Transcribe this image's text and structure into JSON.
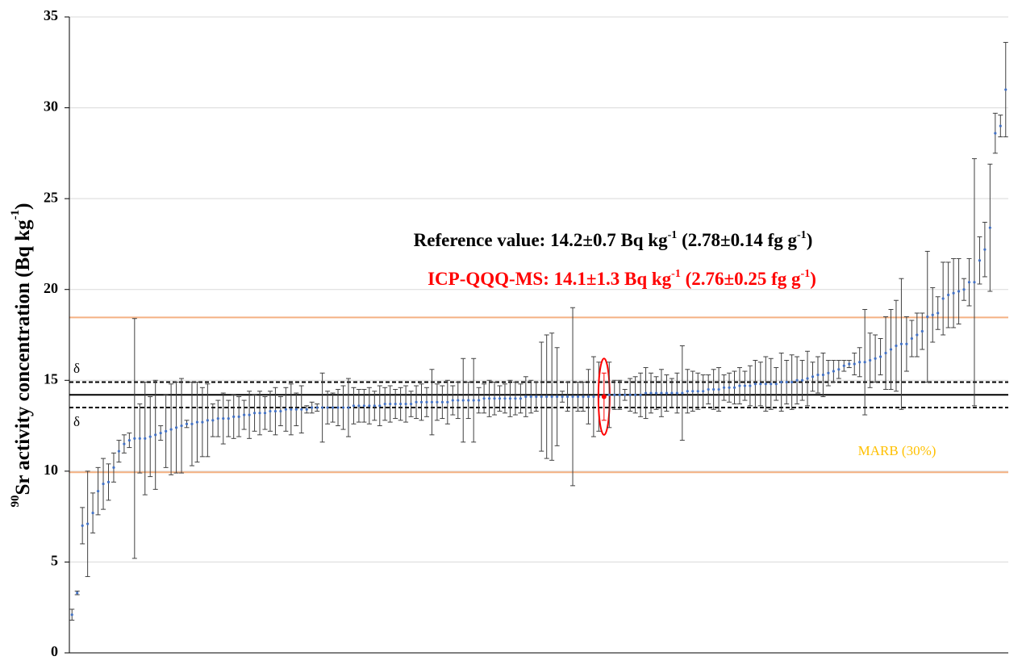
{
  "chart_data": {
    "type": "scatter",
    "y_label": [
      "90",
      "Sr activity concentration (Bq kg",
      "-1",
      ")"
    ],
    "ylim": [
      0,
      35
    ],
    "yticks": [
      0,
      5,
      10,
      15,
      20,
      25,
      30,
      35
    ],
    "grid": true,
    "color": "#4472c4",
    "error_color": "#404040",
    "values": [
      2.1,
      3.3,
      7.0,
      7.1,
      7.7,
      8.9,
      9.3,
      9.4,
      10.2,
      11.1,
      11.5,
      11.7,
      11.8,
      11.8,
      11.8,
      11.9,
      12.0,
      12.1,
      12.2,
      12.3,
      12.4,
      12.5,
      12.6,
      12.6,
      12.7,
      12.7,
      12.8,
      12.8,
      12.9,
      12.9,
      12.9,
      13.0,
      13.0,
      13.1,
      13.1,
      13.2,
      13.2,
      13.2,
      13.3,
      13.3,
      13.3,
      13.4,
      13.4,
      13.4,
      13.4,
      13.4,
      13.5,
      13.5,
      13.5,
      13.5,
      13.5,
      13.5,
      13.5,
      13.5,
      13.6,
      13.6,
      13.6,
      13.6,
      13.6,
      13.6,
      13.7,
      13.7,
      13.7,
      13.7,
      13.7,
      13.7,
      13.8,
      13.8,
      13.8,
      13.8,
      13.8,
      13.8,
      13.8,
      13.9,
      13.9,
      13.9,
      13.9,
      13.9,
      13.9,
      14.0,
      14.0,
      14.0,
      14.0,
      14.0,
      14.0,
      14.0,
      14.0,
      14.1,
      14.1,
      14.1,
      14.1,
      14.1,
      14.1,
      14.1,
      14.1,
      14.1,
      14.1,
      14.1,
      14.1,
      14.1,
      14.1,
      14.1,
      14.1,
      14.2,
      14.2,
      14.2,
      14.2,
      14.2,
      14.2,
      14.2,
      14.3,
      14.3,
      14.3,
      14.3,
      14.3,
      14.3,
      14.3,
      14.3,
      14.4,
      14.4,
      14.4,
      14.4,
      14.5,
      14.5,
      14.5,
      14.6,
      14.6,
      14.6,
      14.7,
      14.7,
      14.7,
      14.8,
      14.8,
      14.8,
      14.8,
      14.8,
      14.9,
      14.9,
      14.9,
      15.0,
      15.0,
      15.1,
      15.2,
      15.3,
      15.3,
      15.4,
      15.5,
      15.6,
      15.8,
      15.9,
      15.9,
      16.0,
      16.0,
      16.1,
      16.2,
      16.3,
      16.5,
      16.7,
      16.9,
      17.0,
      17.0,
      17.3,
      17.5,
      17.7,
      18.5,
      18.6,
      18.7,
      19.5,
      19.7,
      19.8,
      19.9,
      20.0,
      20.4,
      20.4,
      21.6,
      22.2,
      23.4,
      28.6,
      29.0,
      31.0
    ],
    "errors": [
      0.3,
      0.1,
      1.0,
      2.9,
      1.1,
      1.3,
      1.4,
      1.0,
      0.8,
      0.6,
      0.5,
      0.4,
      6.6,
      1.9,
      3.1,
      2.2,
      3.0,
      0.4,
      2.0,
      2.5,
      2.5,
      2.6,
      0.2,
      2.3,
      2.2,
      1.9,
      2.0,
      0.9,
      1.0,
      1.4,
      1.0,
      1.2,
      1.1,
      0.8,
      1.3,
      1.0,
      1.2,
      0.9,
      1.1,
      1.3,
      0.8,
      1.2,
      1.4,
      0.9,
      1.3,
      0.2,
      0.3,
      0.2,
      1.9,
      0.9,
      0.8,
      1.0,
      1.2,
      1.6,
      1.0,
      0.9,
      0.9,
      1.0,
      0.8,
      1.1,
      0.9,
      1.0,
      0.8,
      0.9,
      1.0,
      0.7,
      0.9,
      1.0,
      0.8,
      1.8,
      1.0,
      0.9,
      1.2,
      0.8,
      1.0,
      2.3,
      1.0,
      2.3,
      0.7,
      0.8,
      1.0,
      0.9,
      0.7,
      0.8,
      1.0,
      0.9,
      0.8,
      1.1,
      0.9,
      0.8,
      3.0,
      3.4,
      3.5,
      2.7,
      0.3,
      0.8,
      4.9,
      0.8,
      0.8,
      1.5,
      2.2,
      1.9,
      1.3,
      1.8,
      0.8,
      0.8,
      0.3,
      0.9,
      1.0,
      1.2,
      1.4,
      1.1,
      0.9,
      1.3,
      1.0,
      0.8,
      1.1,
      2.6,
      1.2,
      1.1,
      1.0,
      0.9,
      0.8,
      1.1,
      1.2,
      0.7,
      0.8,
      0.9,
      1.0,
      0.8,
      1.1,
      1.3,
      1.2,
      1.5,
      1.4,
      0.9,
      1.6,
      1.2,
      1.5,
      1.3,
      1.1,
      1.5,
      0.8,
      1.0,
      1.2,
      0.7,
      0.6,
      0.5,
      0.3,
      0.2,
      0.6,
      0.8,
      2.9,
      1.5,
      1.3,
      1.0,
      2.0,
      2.2,
      2.5,
      3.6,
      1.5,
      1.0,
      1.2,
      1.0,
      3.6,
      1.5,
      0.9,
      2.0,
      1.8,
      1.9,
      1.8,
      0.6,
      1.3,
      6.8,
      1.3,
      1.5,
      3.5,
      1.1,
      0.6,
      2.6
    ],
    "highlight": {
      "index": 102,
      "color": "#ff0000"
    },
    "reference_lines": [
      {
        "value": 14.2,
        "color": "#000000",
        "style": "solid"
      },
      {
        "value": 14.9,
        "color": "#000000",
        "style": "dashed"
      },
      {
        "value": 13.5,
        "color": "#000000",
        "style": "dashed"
      },
      {
        "value": 18.46,
        "color": "#f4b183",
        "style": "solid"
      },
      {
        "value": 9.94,
        "color": "#f4b183",
        "style": "solid"
      }
    ],
    "delta_label": "δ",
    "marb_label": "MARB (30%)",
    "marb_color": "#ffc000",
    "reference_text": [
      "Reference value: 14.2±0.7 Bq kg",
      "-1",
      " (2.78±0.14 fg g",
      "-1",
      ")"
    ],
    "icp_text": [
      "ICP-QQQ-MS: 14.1±1.3 Bq kg",
      "-1",
      " (2.76±0.25 fg g",
      "-1",
      ")"
    ]
  }
}
